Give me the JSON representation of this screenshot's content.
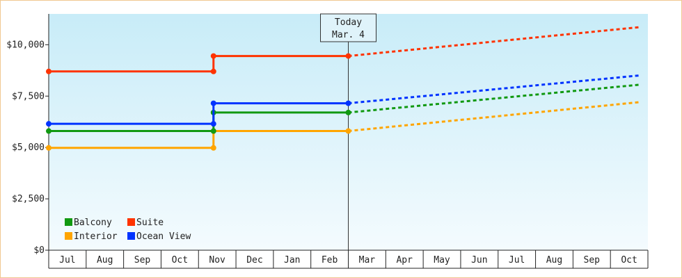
{
  "chart_data": {
    "type": "line",
    "x": [
      "Jul",
      "Aug",
      "Sep",
      "Oct",
      "Nov",
      "Dec",
      "Jan",
      "Feb",
      "Mar",
      "Apr",
      "May",
      "Jun",
      "Jul",
      "Aug",
      "Sep",
      "Oct"
    ],
    "y_ticks": [
      "$0",
      "$2,500",
      "$5,000",
      "$7,500",
      "$10,000"
    ],
    "ylim": [
      0,
      11500
    ],
    "today_label": [
      "Today",
      "Mar. 4"
    ],
    "today_month_index": 8.0,
    "step_month_index": 4.4,
    "forecast_end_index": 15.75,
    "series": [
      {
        "name": "Suite",
        "color": "#ff3300",
        "history": [
          8700,
          9450
        ],
        "forecast_end": 10850
      },
      {
        "name": "Ocean View",
        "color": "#0033ff",
        "history": [
          6150,
          7150
        ],
        "forecast_end": 8500
      },
      {
        "name": "Balcony",
        "color": "#119911",
        "history": [
          5800,
          6700
        ],
        "forecast_end": 8050
      },
      {
        "name": "Interior",
        "color": "#ffa500",
        "history": [
          4980,
          5800
        ],
        "forecast_end": 7200
      }
    ],
    "legend": [
      {
        "name": "Balcony",
        "color": "#119911"
      },
      {
        "name": "Suite",
        "color": "#ff3300"
      },
      {
        "name": "Interior",
        "color": "#ffa500"
      },
      {
        "name": "Ocean View",
        "color": "#0033ff"
      }
    ],
    "legend_placement": "bottom-left",
    "grid": false
  }
}
